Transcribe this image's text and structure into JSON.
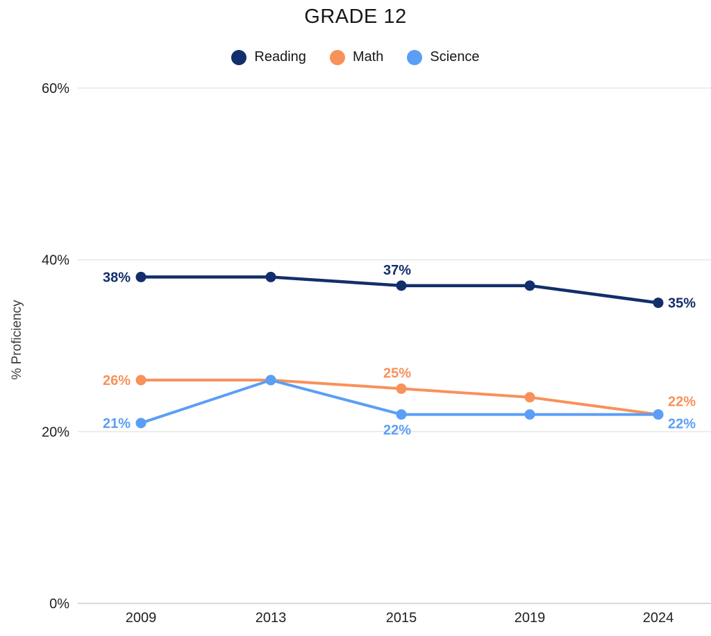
{
  "chart_data": {
    "type": "line",
    "title": "GRADE 12",
    "xlabel": "",
    "ylabel": "% Proficiency",
    "x": [
      "2009",
      "2013",
      "2015",
      "2019",
      "2024"
    ],
    "ylim": [
      0,
      60
    ],
    "yticks": [
      0,
      20,
      40,
      60
    ],
    "ytick_labels": [
      "0%",
      "20%",
      "40%",
      "60%"
    ],
    "grid": true,
    "legend_position": "top",
    "series": [
      {
        "name": "Reading",
        "color": "#122e6b",
        "values": [
          38,
          38,
          37,
          37,
          35
        ],
        "point_labels": [
          {
            "index": 0,
            "text": "38%",
            "placement": "left"
          },
          {
            "index": 2,
            "text": "37%",
            "placement": "above"
          },
          {
            "index": 4,
            "text": "35%",
            "placement": "right"
          }
        ]
      },
      {
        "name": "Math",
        "color": "#f8915a",
        "values": [
          26,
          26,
          25,
          24,
          22
        ],
        "point_labels": [
          {
            "index": 0,
            "text": "26%",
            "placement": "left"
          },
          {
            "index": 2,
            "text": "25%",
            "placement": "above"
          },
          {
            "index": 4,
            "text": "22%",
            "placement": "right-above"
          }
        ]
      },
      {
        "name": "Science",
        "color": "#5b9ef5",
        "values": [
          21,
          26,
          22,
          22,
          22
        ],
        "point_labels": [
          {
            "index": 0,
            "text": "21%",
            "placement": "left"
          },
          {
            "index": 2,
            "text": "22%",
            "placement": "below"
          },
          {
            "index": 4,
            "text": "22%",
            "placement": "right-below"
          }
        ]
      }
    ]
  },
  "colors": {
    "grid_line": "#e7e7e7",
    "baseline": "#d9d9d9",
    "tick_text": "#212121",
    "axis_title_text": "#3d3d3d"
  }
}
